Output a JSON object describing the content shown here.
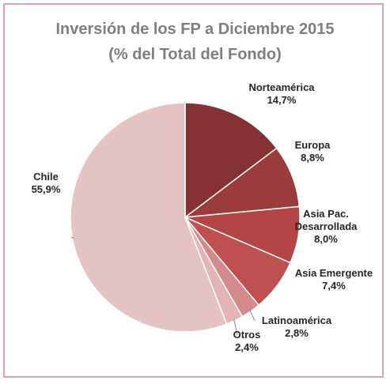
{
  "chart_data": {
    "type": "pie",
    "title": "Inversión de los FP a Diciembre 2015",
    "subtitle": "(% del Total del Fondo)",
    "categories": [
      "Norteamérica",
      "Europa",
      "Asia Pac. Desarrollada",
      "Asia Emergente",
      "Latinoamérica",
      "Otros",
      "Chile"
    ],
    "values": [
      14.7,
      8.8,
      8.0,
      7.4,
      2.8,
      2.4,
      55.9
    ],
    "value_labels": [
      "14,7%",
      "8,8%",
      "8,0%",
      "7,4%",
      "2,8%",
      "2,4%",
      "55,9%"
    ],
    "label_lines": [
      [
        "Norteamérica",
        "14,7%"
      ],
      [
        "Europa",
        "8,8%"
      ],
      [
        "Asia Pac.",
        "Desarrollada",
        "8,0%"
      ],
      [
        "Asia Emergente",
        "7,4%"
      ],
      [
        "Latinoamérica",
        "2,8%"
      ],
      [
        "Otros",
        "2,4%"
      ],
      [
        "Chile",
        "55,9%"
      ]
    ],
    "colors": [
      "#843232",
      "#9b3c3c",
      "#b34545",
      "#c04f4f",
      "#d48a8a",
      "#e3b4b4",
      "#e6c3c3"
    ],
    "start_angle_deg": 0,
    "direction": "clockwise",
    "legend": "none"
  }
}
